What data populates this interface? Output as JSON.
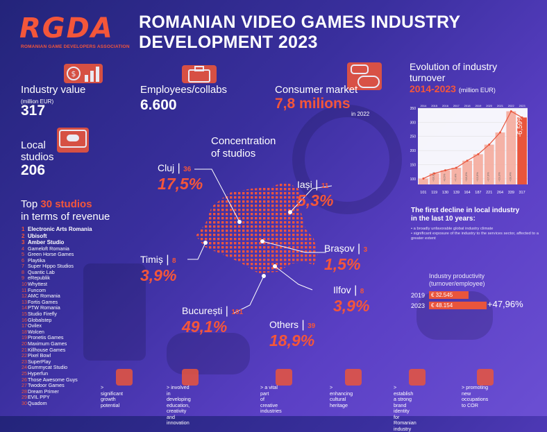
{
  "logo": {
    "text": "RGDA",
    "subtitle": "ROMANIAN GAME DEVELOPERS ASSOCIATION"
  },
  "title": {
    "line1": "ROMANIAN VIDEO GAMES INDUSTRY",
    "line2": "DEVELOPMENT  2023"
  },
  "stats": {
    "industry_value": {
      "label": "Industry value",
      "sub": "(million EUR)",
      "value": "317"
    },
    "employees": {
      "label": "Employees/collabs",
      "value": "6.600"
    },
    "consumer": {
      "label": "Consumer market",
      "value": "7,8 milions",
      "sub": "in 2022"
    },
    "local_studios": {
      "label1": "Local",
      "label2": "studios",
      "value": "206"
    }
  },
  "concentration": {
    "line1": "Concentration",
    "line2": "of studios"
  },
  "regions": [
    {
      "name": "Cluj",
      "count": "36",
      "pct": "17,5%"
    },
    {
      "name": "Iași",
      "count": "11",
      "pct": "5,3%"
    },
    {
      "name": "Brașov",
      "count": "3",
      "pct": "1,5%"
    },
    {
      "name": "Timiș",
      "count": "8",
      "pct": "3,9%"
    },
    {
      "name": "Ilfov",
      "count": "8",
      "pct": "3,9%"
    },
    {
      "name": "București",
      "count": "101",
      "pct": "49,1%"
    },
    {
      "name": "Others",
      "count": "39",
      "pct": "18,9%"
    }
  ],
  "top30": {
    "title_pre": "Top ",
    "title_num": "30 studios",
    "title_post": "in terms of revenue",
    "studios": [
      "Electronic Arts Romania",
      "Ubisoft",
      "Amber Studio",
      "Gameloft Romania",
      "Green Horse Games",
      "Playtika",
      "Super Hippo Studios",
      "Quantic Lab",
      "eRepublik",
      "Whyttest",
      "Funcom",
      "AMC Romania",
      "Fortis Games",
      "PTW Romania",
      "Studio Firefly",
      "Globalstep",
      "Ovilex",
      "Wolcen",
      "Pronetis Games",
      "Maximum Games",
      "Killhouse Games",
      "Pixel Bowl",
      "SuperPlay",
      "Gummycat Studio",
      "Hyperfun",
      "Those Awesome Guys",
      "Twodoor Games",
      "Dream Primer",
      "EVIL PPY",
      "Quadom"
    ]
  },
  "evolution": {
    "title": "Evolution of industry turnover",
    "range": "2014-2023",
    "unit": "(million EUR)"
  },
  "chart_data": {
    "type": "bar",
    "title": "Evolution of industry turnover 2014-2023",
    "ylabel": "(million EUR)",
    "categories": [
      "2014",
      "2015",
      "2016",
      "2017",
      "2018",
      "2019",
      "2020",
      "2021",
      "2022",
      "2023"
    ],
    "values": [
      101,
      119,
      130,
      139,
      164,
      187,
      221,
      264,
      339,
      317
    ],
    "growth_labels": [
      "",
      "+18,0%",
      "+8,5%",
      "+7,4%",
      "+18,0%",
      "+13,9%",
      "+17,9%",
      "+19,3%",
      "+28,4%",
      "-6,59%"
    ],
    "yticks": [
      100,
      150,
      200,
      250,
      300,
      350
    ],
    "ylim": [
      80,
      350
    ]
  },
  "decline": {
    "title1": "The first decline in local industry",
    "title2": "in the last 10 years:",
    "points": [
      "• a broadly unfavorable global industry climate",
      "• significant exposure of the industry to the services sector, affected to a greater extent"
    ]
  },
  "productivity": {
    "title1": "Industry productivity",
    "title2": "(turnover/employee)",
    "rows": [
      {
        "year": "2019",
        "value": "€ 32.545",
        "fraction": 0.676
      },
      {
        "year": "2023",
        "value": "€ 48.154",
        "fraction": 1.0
      }
    ],
    "change": "+47,96%"
  },
  "footer": [
    {
      "line1": "> significant",
      "line2": "growth",
      "line3": "potential"
    },
    {
      "line1": "> involved in",
      "line2": "developing education,",
      "line3": "creativity and innovation"
    },
    {
      "line1": "> a vital part",
      "line2": "of creative",
      "line3": "industries"
    },
    {
      "line1": "> enhancing",
      "line2": "cultural",
      "line3": "heritage"
    },
    {
      "line1": "> establish",
      "line2": "a strong brand identity",
      "line3": "for Romanian industry"
    },
    {
      "line1": "> promoting",
      "line2": "new occupations",
      "line3": "to COR"
    }
  ]
}
